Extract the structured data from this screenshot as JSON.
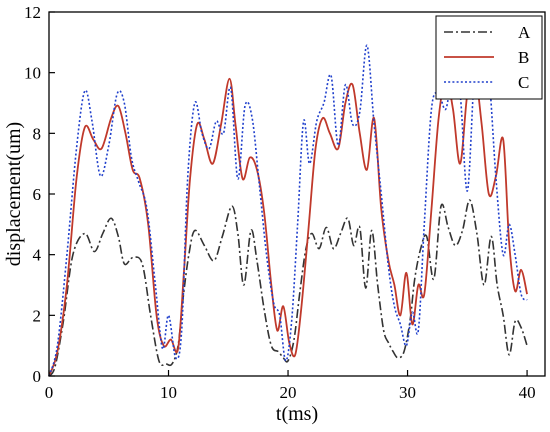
{
  "chart_data": {
    "type": "line",
    "xlabel": "t(ms)",
    "ylabel": "displacement(um)",
    "xlim": [
      0,
      41.5
    ],
    "ylim": [
      0,
      12
    ],
    "xticks": [
      0,
      10,
      20,
      30,
      40
    ],
    "yticks": [
      0,
      2,
      4,
      6,
      8,
      10,
      12
    ],
    "grid": false,
    "legend_position": "top-right",
    "series": [
      {
        "name": "A",
        "color": "#333333",
        "style": "dashdot",
        "x": [
          0,
          0.5,
          1.2,
          2.0,
          3.0,
          3.8,
          4.5,
          5.2,
          5.8,
          6.3,
          7.0,
          7.8,
          8.5,
          9.2,
          9.8,
          10.3,
          10.8,
          11.2,
          11.7,
          12.2,
          13.0,
          13.8,
          14.5,
          15.3,
          15.8,
          16.3,
          16.9,
          17.4,
          18.0,
          18.6,
          19.2,
          19.6,
          20.0,
          20.5,
          21.0,
          21.5,
          22.0,
          22.6,
          23.2,
          23.8,
          24.4,
          25.0,
          25.5,
          26.0,
          26.5,
          27.0,
          27.5,
          28.0,
          28.4,
          28.8,
          29.2,
          29.7,
          30.2,
          30.6,
          31.1,
          31.6,
          32.2,
          32.8,
          33.4,
          34.0,
          34.6,
          35.2,
          35.8,
          36.4,
          37.0,
          37.5,
          38.0,
          38.5,
          39.0,
          39.5,
          40.0
        ],
        "y": [
          0.0,
          0.3,
          1.8,
          4.0,
          4.7,
          4.1,
          4.7,
          5.2,
          4.6,
          3.7,
          3.9,
          3.7,
          2.0,
          0.5,
          0.4,
          0.4,
          1.0,
          2.5,
          4.0,
          4.8,
          4.3,
          3.8,
          4.6,
          5.6,
          4.7,
          3.0,
          4.8,
          3.8,
          2.2,
          1.0,
          0.8,
          0.6,
          0.5,
          1.2,
          2.8,
          4.2,
          4.7,
          4.2,
          4.9,
          4.2,
          4.7,
          5.2,
          4.3,
          4.9,
          2.9,
          4.8,
          3.0,
          1.5,
          1.1,
          0.8,
          0.6,
          0.8,
          1.8,
          3.2,
          4.2,
          4.6,
          3.2,
          5.6,
          4.9,
          4.3,
          4.8,
          5.8,
          4.7,
          3.0,
          4.6,
          3.0,
          2.0,
          0.7,
          1.8,
          1.6,
          1.0
        ]
      },
      {
        "name": "B",
        "color": "#c0392b",
        "style": "solid",
        "x": [
          0,
          0.7,
          1.5,
          2.3,
          3.0,
          3.7,
          4.4,
          5.2,
          5.8,
          6.4,
          7.0,
          7.6,
          8.3,
          9.0,
          9.6,
          10.2,
          10.8,
          11.3,
          11.8,
          12.4,
          13.0,
          13.7,
          14.4,
          15.1,
          15.6,
          16.2,
          16.8,
          17.4,
          18.0,
          18.6,
          19.1,
          19.6,
          20.1,
          20.6,
          21.1,
          21.7,
          22.3,
          22.9,
          23.5,
          24.2,
          24.8,
          25.4,
          26.0,
          26.6,
          27.2,
          27.8,
          28.4,
          28.9,
          29.4,
          29.9,
          30.4,
          30.9,
          31.4,
          32.0,
          32.6,
          33.2,
          33.8,
          34.4,
          35.0,
          35.6,
          36.2,
          36.8,
          37.4,
          38.0,
          38.5,
          39.0,
          39.5,
          40.0
        ],
        "y": [
          0.0,
          0.8,
          3.0,
          6.5,
          8.2,
          7.8,
          7.5,
          8.5,
          8.9,
          8.0,
          6.8,
          6.5,
          5.0,
          2.0,
          1.0,
          1.2,
          0.9,
          3.5,
          6.5,
          8.3,
          7.8,
          7.0,
          8.3,
          9.8,
          8.3,
          6.5,
          7.2,
          6.8,
          5.4,
          3.0,
          1.5,
          2.3,
          1.1,
          0.7,
          2.2,
          4.8,
          7.5,
          8.5,
          8.0,
          7.5,
          9.0,
          9.6,
          8.0,
          6.8,
          8.5,
          5.5,
          3.8,
          3.0,
          2.0,
          3.4,
          1.7,
          3.0,
          2.7,
          5.5,
          8.5,
          9.8,
          8.8,
          7.0,
          9.3,
          10.1,
          8.3,
          6.0,
          6.6,
          7.8,
          4.4,
          2.8,
          3.5,
          2.7
        ]
      },
      {
        "name": "C",
        "color": "#1f3fcc",
        "style": "dotted",
        "x": [
          0,
          0.7,
          1.5,
          2.3,
          3.0,
          3.6,
          4.3,
          5.0,
          5.7,
          6.3,
          6.9,
          7.5,
          8.2,
          8.9,
          9.5,
          10.0,
          10.6,
          11.1,
          11.6,
          12.2,
          12.8,
          13.4,
          14.0,
          14.6,
          15.2,
          15.8,
          16.4,
          17.0,
          17.6,
          18.2,
          18.8,
          19.3,
          19.8,
          20.3,
          20.8,
          21.3,
          21.8,
          22.4,
          23.0,
          23.6,
          24.2,
          24.8,
          25.4,
          26.0,
          26.6,
          27.2,
          27.8,
          28.4,
          28.9,
          29.4,
          29.9,
          30.4,
          30.9,
          31.4,
          32.0,
          32.6,
          33.2,
          33.8,
          34.4,
          35.0,
          35.6,
          36.2,
          36.8,
          37.4,
          38.0,
          38.5,
          39.0,
          39.5,
          40.0
        ],
        "y": [
          0.0,
          1.0,
          4.0,
          7.5,
          9.4,
          8.4,
          6.6,
          7.6,
          9.3,
          9.0,
          7.2,
          6.4,
          5.5,
          3.0,
          0.9,
          2.0,
          0.6,
          1.5,
          6.5,
          9.0,
          8.0,
          7.5,
          8.4,
          8.0,
          9.5,
          6.5,
          8.9,
          8.5,
          6.3,
          4.0,
          2.4,
          2.0,
          0.5,
          1.8,
          5.0,
          8.4,
          7.0,
          8.4,
          9.0,
          9.9,
          7.6,
          9.6,
          8.3,
          8.7,
          10.9,
          8.3,
          6.0,
          3.6,
          2.3,
          1.7,
          1.0,
          2.1,
          1.5,
          5.0,
          8.8,
          9.3,
          8.8,
          10.0,
          9.3,
          6.1,
          10.0,
          11.5,
          10.0,
          6.5,
          4.0,
          5.0,
          4.0,
          2.7,
          2.5
        ]
      }
    ]
  }
}
